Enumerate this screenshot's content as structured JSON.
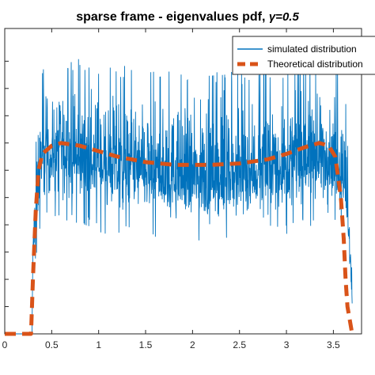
{
  "chart_data": {
    "type": "line",
    "title": "sparse frame - eigenvalues pdf,",
    "title_symbol": "γ=0.5",
    "xlabel": "",
    "ylabel": "",
    "xlim": [
      0,
      3.8
    ],
    "ylim": [
      0,
      1.12
    ],
    "x_ticks": [
      0,
      0.5,
      1,
      1.5,
      2,
      2.5,
      3,
      3.5
    ],
    "x_tick_labels": [
      "0",
      "0.5",
      "1",
      "1.5",
      "2",
      "2.5",
      "3",
      "3.5"
    ],
    "y_ticks": [
      0.1,
      0.2,
      0.3,
      0.4,
      0.5,
      0.6,
      0.7,
      0.8,
      0.9,
      1.0
    ],
    "grid": false,
    "legend_position": "top-right",
    "series": [
      {
        "name": "simulated distribution",
        "color": "#0072BD",
        "style": "solid",
        "envelope": {
          "x": [
            0.3,
            0.36,
            0.4,
            0.6,
            1.0,
            1.5,
            2.0,
            2.5,
            3.0,
            3.3,
            3.5,
            3.62,
            3.66,
            3.7
          ],
          "mean": [
            0.3,
            0.55,
            0.64,
            0.66,
            0.62,
            0.58,
            0.56,
            0.57,
            0.61,
            0.64,
            0.64,
            0.55,
            0.4,
            0.1
          ],
          "low": [
            0.2,
            0.4,
            0.45,
            0.45,
            0.42,
            0.38,
            0.37,
            0.38,
            0.41,
            0.45,
            0.45,
            0.4,
            0.3,
            0.05
          ],
          "high": [
            0.42,
            0.9,
            0.95,
            0.99,
            0.96,
            0.94,
            0.93,
            0.93,
            0.95,
            0.97,
            0.97,
            0.9,
            0.6,
            0.2
          ]
        }
      },
      {
        "name": "Theoretical distribution",
        "color": "#D95319",
        "style": "dashed",
        "x": [
          0.0,
          0.28,
          0.3,
          0.33,
          0.36,
          0.4,
          0.5,
          0.6,
          0.8,
          1.0,
          1.2,
          1.5,
          1.8,
          2.0,
          2.2,
          2.5,
          2.8,
          3.0,
          3.2,
          3.35,
          3.45,
          3.52,
          3.58,
          3.61,
          3.63,
          3.65,
          3.7
        ],
        "y": [
          0.0,
          0.0,
          0.2,
          0.45,
          0.6,
          0.66,
          0.69,
          0.7,
          0.69,
          0.67,
          0.65,
          0.63,
          0.62,
          0.62,
          0.62,
          0.625,
          0.64,
          0.66,
          0.685,
          0.7,
          0.69,
          0.65,
          0.5,
          0.35,
          0.2,
          0.1,
          0.0
        ]
      }
    ]
  }
}
